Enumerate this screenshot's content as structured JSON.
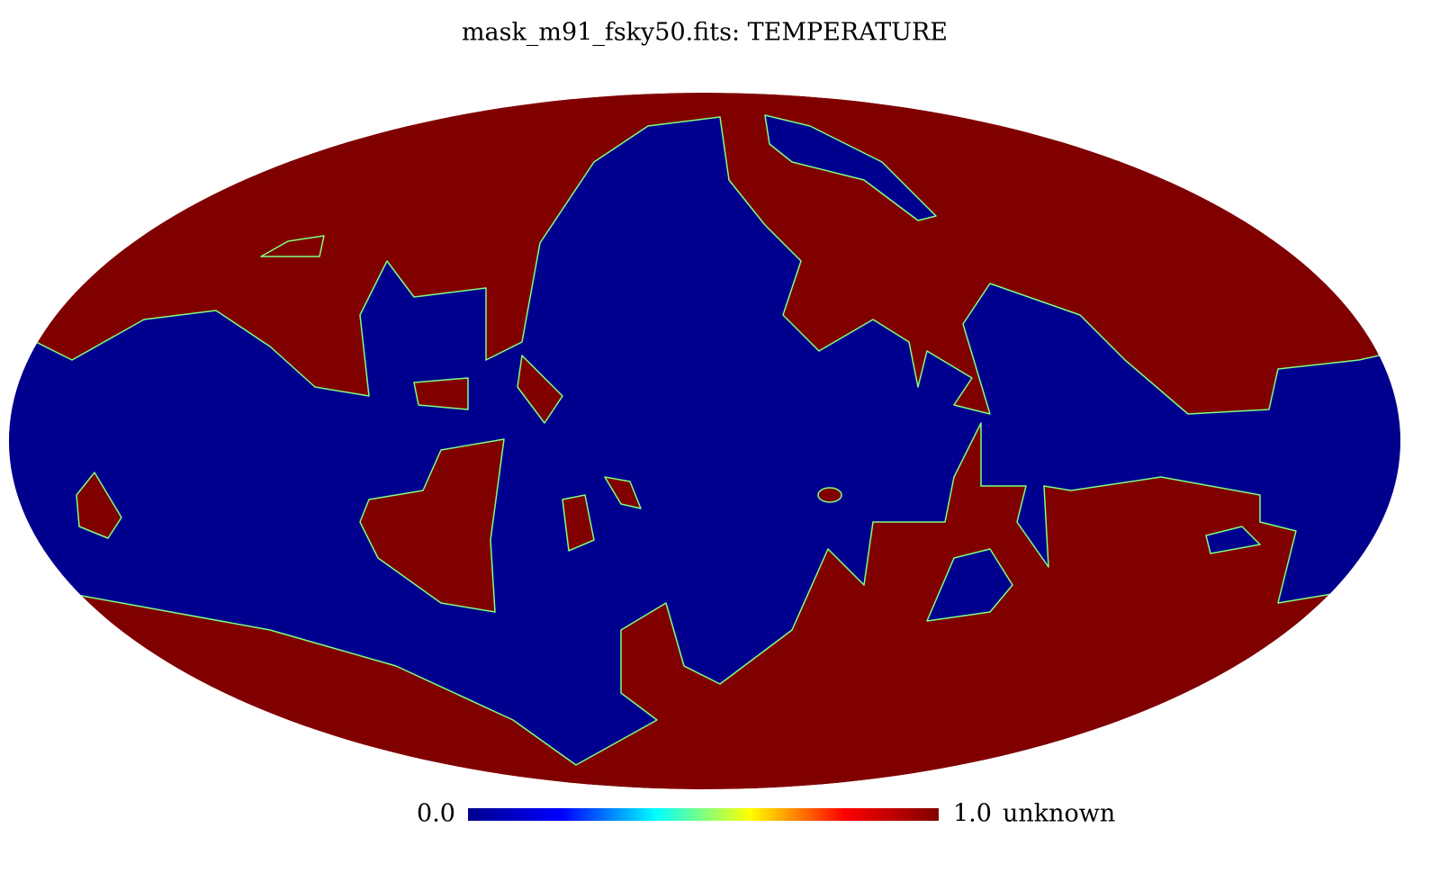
{
  "chart_data": {
    "type": "mollweide",
    "title": "mask_m91_fsky50.fits: TEMPERATURE",
    "unit": "unknown",
    "colorbar_lim": [
      0,
      1
    ],
    "colorbar_ticks": [
      {
        "value": 0,
        "label": "0.0"
      },
      {
        "value": 1,
        "label": "1.0"
      }
    ],
    "colormap": [
      "#00008f",
      "#0000ff",
      "#00ffff",
      "#ffff00",
      "#ff0000",
      "#800000"
    ]
  }
}
